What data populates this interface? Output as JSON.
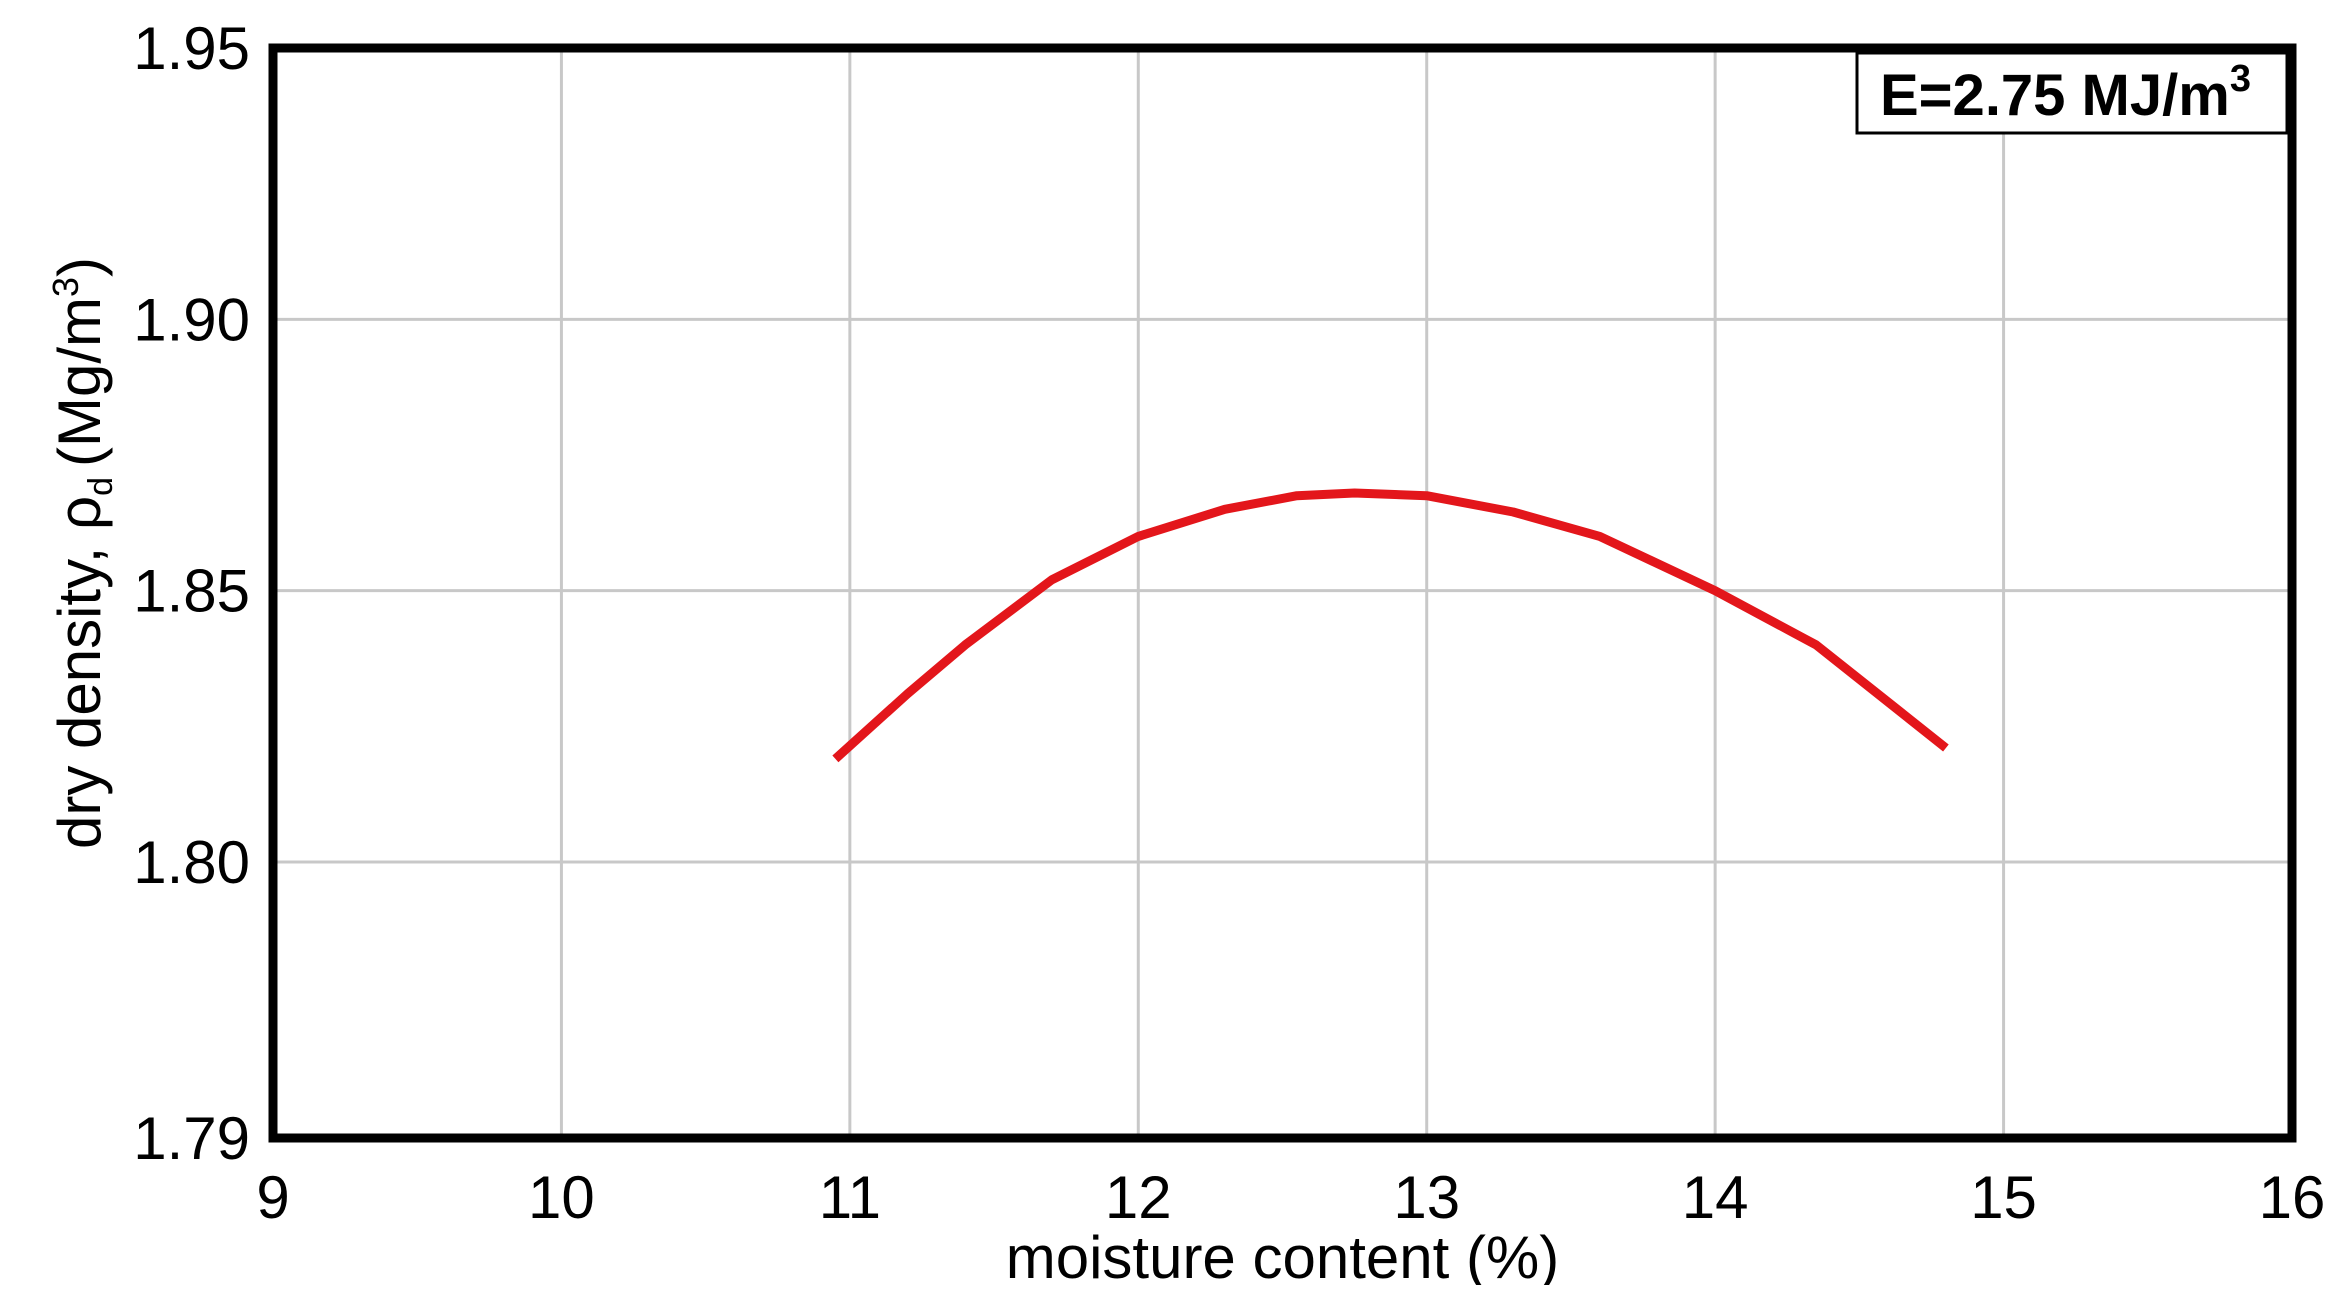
{
  "chart_data": {
    "type": "line",
    "title": "",
    "xlabel": "moisture content (%)",
    "ylabel_main": "dry density, ",
    "ylabel_rho": "ρ",
    "ylabel_sub": "d",
    "ylabel_units": "(Mg/m",
    "ylabel_units_sup": "3",
    "ylabel_units_close": ")",
    "xlim": [
      9,
      16
    ],
    "ylim": [
      1.79,
      1.95
    ],
    "y_axis_break": true,
    "xticks": [
      9,
      10,
      11,
      12,
      13,
      14,
      15,
      16
    ],
    "yticks": [
      1.79,
      1.8,
      1.85,
      1.9,
      1.95
    ],
    "xtick_labels": [
      "9",
      "10",
      "11",
      "12",
      "13",
      "14",
      "15",
      "16"
    ],
    "ytick_labels": [
      "1.79",
      "1.80",
      "1.85",
      "1.90",
      "1.95"
    ],
    "grid": true,
    "annotation": {
      "text": "E=2.75 MJ/m",
      "sup": "3",
      "placement": "top-right"
    },
    "series": [
      {
        "color": "#e3161b",
        "x": [
          10.95,
          11.2,
          11.4,
          11.7,
          12.0,
          12.3,
          12.55,
          12.75,
          13.0,
          13.3,
          13.6,
          14.0,
          14.35,
          14.8
        ],
        "y": [
          1.819,
          1.831,
          1.84,
          1.852,
          1.86,
          1.865,
          1.8675,
          1.868,
          1.8675,
          1.8645,
          1.86,
          1.85,
          1.84,
          1.821
        ]
      }
    ]
  }
}
